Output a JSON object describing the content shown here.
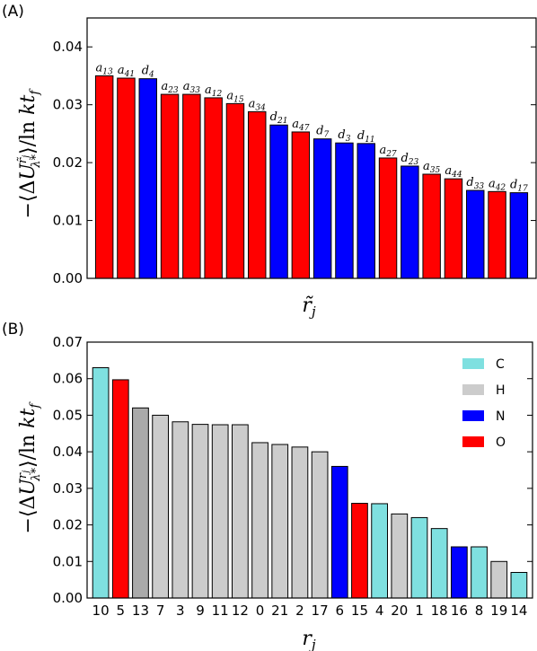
{
  "chart_data": [
    {
      "panel_label": "(A)",
      "type": "bar",
      "ylabel": "−⟨ΔU^{r̃_j}_{λ*}⟩/ln kt_f",
      "xlabel": "r̃_j",
      "ylim": [
        0,
        0.045
      ],
      "yticks": [
        "0.00",
        "0.01",
        "0.02",
        "0.03",
        "0.04"
      ],
      "ytick_values": [
        0,
        0.01,
        0.02,
        0.03,
        0.04
      ],
      "categories": [
        "a13",
        "a41",
        "d4",
        "a23",
        "a33",
        "a12",
        "a15",
        "a34",
        "d21",
        "a47",
        "d7",
        "d3",
        "d11",
        "a27",
        "d23",
        "a35",
        "a44",
        "d33",
        "a42",
        "d17"
      ],
      "label_base": [
        "a",
        "a",
        "d",
        "a",
        "a",
        "a",
        "a",
        "a",
        "d",
        "a",
        "d",
        "d",
        "d",
        "a",
        "d",
        "a",
        "a",
        "d",
        "a",
        "d"
      ],
      "label_sub": [
        "13",
        "41",
        "4",
        "23",
        "33",
        "12",
        "15",
        "34",
        "21",
        "47",
        "7",
        "3",
        "11",
        "27",
        "23",
        "35",
        "44",
        "33",
        "42",
        "17"
      ],
      "values": [
        0.035,
        0.0346,
        0.0345,
        0.0318,
        0.0318,
        0.0312,
        0.0302,
        0.0288,
        0.0265,
        0.0253,
        0.0241,
        0.0234,
        0.0233,
        0.0208,
        0.0194,
        0.018,
        0.0172,
        0.0152,
        0.015,
        0.0148
      ],
      "colors": [
        "#ff0000",
        "#ff0000",
        "#0000ff",
        "#ff0000",
        "#ff0000",
        "#ff0000",
        "#ff0000",
        "#ff0000",
        "#0000ff",
        "#ff0000",
        "#0000ff",
        "#0000ff",
        "#0000ff",
        "#ff0000",
        "#0000ff",
        "#ff0000",
        "#ff0000",
        "#0000ff",
        "#ff0000",
        "#0000ff"
      ]
    },
    {
      "panel_label": "(B)",
      "type": "bar",
      "ylabel": "−⟨ΔU^{r_j}_{λ*}⟩/ln kt_f",
      "xlabel": "r_j",
      "ylim": [
        0,
        0.07
      ],
      "yticks": [
        "0.00",
        "0.01",
        "0.02",
        "0.03",
        "0.04",
        "0.05",
        "0.06",
        "0.07"
      ],
      "ytick_values": [
        0,
        0.01,
        0.02,
        0.03,
        0.04,
        0.05,
        0.06,
        0.07
      ],
      "categories": [
        "10",
        "5",
        "13",
        "7",
        "3",
        "9",
        "11",
        "12",
        "0",
        "21",
        "2",
        "17",
        "6",
        "15",
        "4",
        "20",
        "1",
        "18",
        "16",
        "8",
        "19",
        "14"
      ],
      "values": [
        0.063,
        0.0597,
        0.052,
        0.05,
        0.0482,
        0.0475,
        0.0474,
        0.0474,
        0.0425,
        0.042,
        0.0413,
        0.04,
        0.036,
        0.0259,
        0.0258,
        0.023,
        0.022,
        0.019,
        0.014,
        0.014,
        0.01,
        0.007
      ],
      "elements": [
        "C",
        "O",
        "H",
        "H",
        "H",
        "H",
        "H",
        "H",
        "H",
        "H",
        "H",
        "H",
        "N",
        "O",
        "C",
        "H",
        "C",
        "C",
        "N",
        "C",
        "H",
        "C"
      ],
      "legend": [
        {
          "label": "C",
          "color": "#7fe0e0"
        },
        {
          "label": "H",
          "color": "#cccccc"
        },
        {
          "label": "N",
          "color": "#0000ff"
        },
        {
          "label": "O",
          "color": "#ff0000"
        }
      ],
      "legend_position": "upper-right",
      "highlight_color_H13": "#aaaaaa"
    }
  ]
}
